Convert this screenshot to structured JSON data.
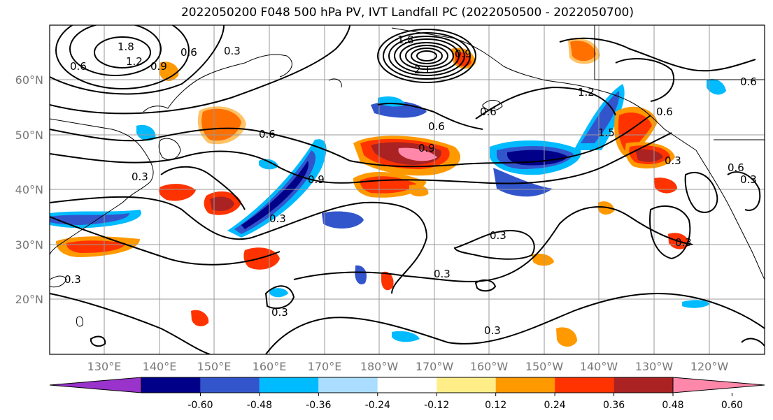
{
  "title": "2022050200 F048 500 hPa PV, IVT Landfall PC (2022050500 - 2022050700)",
  "lat_labels": [
    "60°N",
    "50°N",
    "40°N",
    "30°N",
    "20°N"
  ],
  "lon_labels": [
    "130°E",
    "140°E",
    "150°E",
    "160°E",
    "170°E",
    "180°W",
    "170°W",
    "160°W",
    "150°W",
    "140°W",
    "130°W",
    "120°W"
  ],
  "colorbar": {
    "colors": [
      "#9933cc",
      "#000088",
      "#3355cc",
      "#00bbff",
      "#aaddff",
      "#ffffff",
      "#ffee88",
      "#ff9900",
      "#ff3300",
      "#aa2222",
      "#ff88aa"
    ],
    "tick_labels": [
      "-0.60",
      "-0.48",
      "-0.36",
      "-0.24",
      "-0.12",
      "0.12",
      "0.24",
      "0.36",
      "0.48",
      "0.60"
    ]
  },
  "contour_labels": [
    "1.8",
    "1.2",
    "0.9",
    "0.6",
    "0.3",
    "0.6",
    "0.3",
    "1.8",
    "2.1",
    "0.9",
    "0.6",
    "1.2",
    "0.6",
    "1.5",
    "0.6",
    "0.9",
    "0.6",
    "0.3",
    "0.9",
    "0.3",
    "0.3",
    "0.3",
    "0.3",
    "0.3",
    "0.3",
    "0.3",
    "0.6",
    "0.6",
    "0.3"
  ]
}
